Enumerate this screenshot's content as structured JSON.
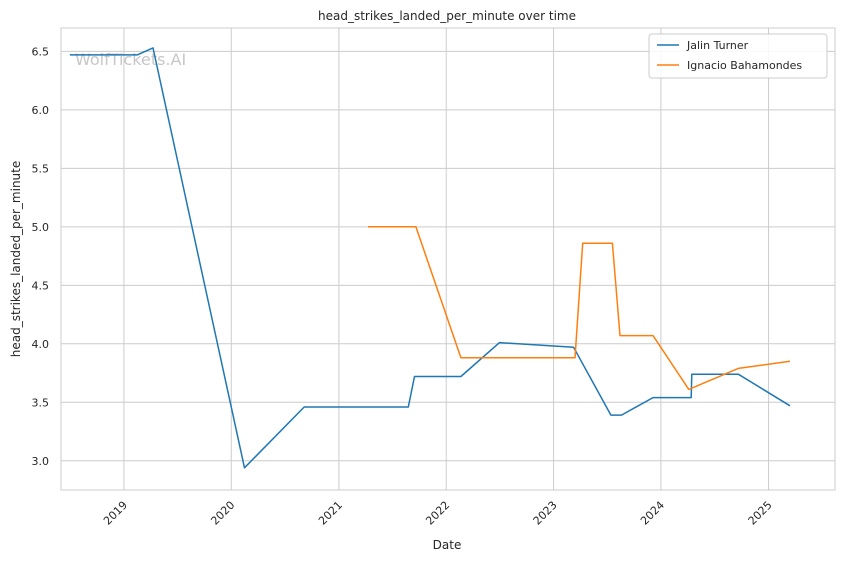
{
  "chart_data": {
    "type": "line",
    "title": "head_strikes_landed_per_minute over time",
    "xlabel": "Date",
    "ylabel": "head_strikes_landed_per_minute",
    "watermark": "WolfTickets.AI",
    "xlim": [
      "2018-06-01",
      "2025-08-15"
    ],
    "ylim": [
      2.75,
      6.7
    ],
    "x_ticks": [
      "2019",
      "2020",
      "2021",
      "2022",
      "2023",
      "2024",
      "2025"
    ],
    "y_ticks": [
      "3.0",
      "3.5",
      "4.0",
      "4.5",
      "5.0",
      "5.5",
      "6.0",
      "6.5"
    ],
    "grid": true,
    "legend_position": "top-right",
    "series": [
      {
        "name": "Jalin Turner",
        "color": "#1f77b4",
        "points": [
          {
            "x": "2018-07-01",
            "y": 6.47
          },
          {
            "x": "2019-02-15",
            "y": 6.47
          },
          {
            "x": "2019-04-10",
            "y": 6.53
          },
          {
            "x": "2020-02-15",
            "y": 2.94
          },
          {
            "x": "2020-09-05",
            "y": 3.46
          },
          {
            "x": "2021-08-25",
            "y": 3.46
          },
          {
            "x": "2021-09-15",
            "y": 3.72
          },
          {
            "x": "2022-02-20",
            "y": 3.72
          },
          {
            "x": "2022-07-01",
            "y": 4.01
          },
          {
            "x": "2023-03-10",
            "y": 3.97
          },
          {
            "x": "2023-07-15",
            "y": 3.39
          },
          {
            "x": "2023-08-20",
            "y": 3.39
          },
          {
            "x": "2023-12-05",
            "y": 3.54
          },
          {
            "x": "2024-04-13",
            "y": 3.54
          },
          {
            "x": "2024-04-15",
            "y": 3.74
          },
          {
            "x": "2024-09-20",
            "y": 3.74
          },
          {
            "x": "2025-03-15",
            "y": 3.47
          }
        ]
      },
      {
        "name": "Ignacio Bahamondes",
        "color": "#ff7f0e",
        "points": [
          {
            "x": "2021-04-10",
            "y": 5.0
          },
          {
            "x": "2021-09-20",
            "y": 5.0
          },
          {
            "x": "2022-02-20",
            "y": 3.88
          },
          {
            "x": "2023-03-15",
            "y": 3.88
          },
          {
            "x": "2023-04-10",
            "y": 4.86
          },
          {
            "x": "2023-07-20",
            "y": 4.86
          },
          {
            "x": "2023-08-15",
            "y": 4.07
          },
          {
            "x": "2023-12-05",
            "y": 4.07
          },
          {
            "x": "2024-04-05",
            "y": 3.61
          },
          {
            "x": "2024-09-20",
            "y": 3.79
          },
          {
            "x": "2025-03-15",
            "y": 3.85
          }
        ]
      }
    ]
  }
}
